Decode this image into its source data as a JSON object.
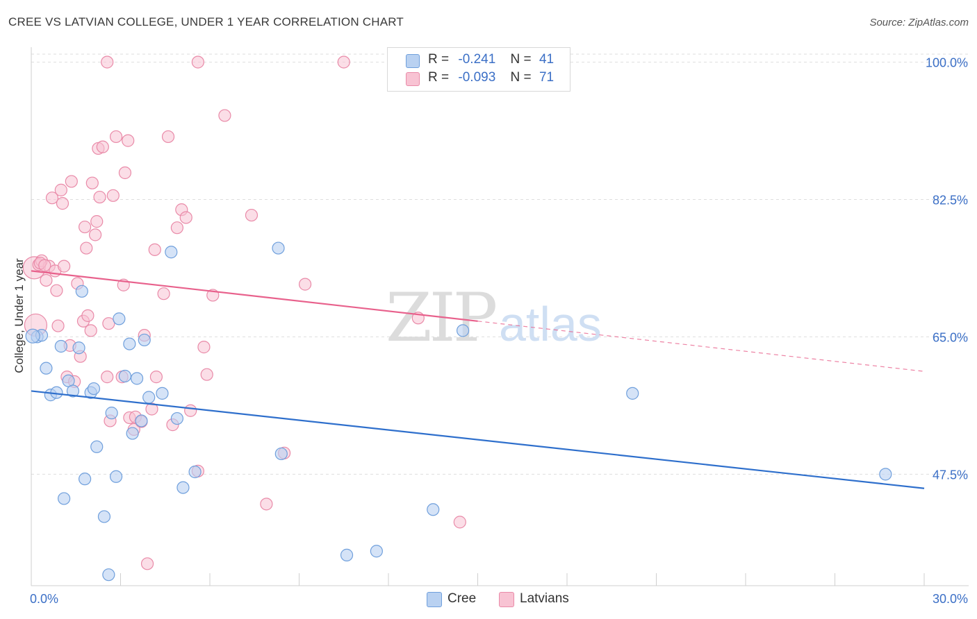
{
  "header": {
    "title": "CREE VS LATVIAN COLLEGE, UNDER 1 YEAR CORRELATION CHART",
    "source": "Source: ZipAtlas.com"
  },
  "legend": {
    "cree": {
      "r_label": "R =",
      "r_value": "-0.241",
      "n_label": "N =",
      "n_value": "41"
    },
    "latvians": {
      "r_label": "R =",
      "r_value": "-0.093",
      "n_label": "N =",
      "n_value": "71"
    }
  },
  "bottom_legend": {
    "cree": "Cree",
    "latvians": "Latvians"
  },
  "watermark": {
    "zip": "ZIP",
    "atlas": "atlas"
  },
  "colors": {
    "cree_fill": "#b9d1f1",
    "cree_stroke": "#6f9fdc",
    "cree_line": "#2e6fcc",
    "latvian_fill": "#f8c3d3",
    "latvian_stroke": "#e98aa8",
    "latvian_line": "#e8618c",
    "tick_label": "#3b6fc6",
    "grid": "#dedede"
  },
  "chart_data": {
    "type": "scatter",
    "title": "CREE VS LATVIAN COLLEGE, UNDER 1 YEAR CORRELATION CHART",
    "xlabel": "",
    "ylabel": "College, Under 1 year",
    "xlim": [
      0,
      30
    ],
    "ylim": [
      33.3,
      101.9
    ],
    "x_tick_labels": [
      "0.0%",
      "30.0%"
    ],
    "y_ticks": [
      47.5,
      65.0,
      82.5,
      100.0
    ],
    "y_tick_labels": [
      "47.5%",
      "65.0%",
      "82.5%",
      "100.0%"
    ],
    "grid": true,
    "series": [
      {
        "name": "Cree",
        "points": [
          [
            0.2,
            65.0
          ],
          [
            0.35,
            65.2
          ],
          [
            0.5,
            61.0
          ],
          [
            0.65,
            57.6
          ],
          [
            0.85,
            57.9
          ],
          [
            1.0,
            63.8
          ],
          [
            1.1,
            44.4
          ],
          [
            1.25,
            59.4
          ],
          [
            1.4,
            58.1
          ],
          [
            1.6,
            63.6
          ],
          [
            1.7,
            70.8
          ],
          [
            1.8,
            46.9
          ],
          [
            2.0,
            57.9
          ],
          [
            2.1,
            58.4
          ],
          [
            2.2,
            51.0
          ],
          [
            2.45,
            42.1
          ],
          [
            2.6,
            34.7
          ],
          [
            2.7,
            55.3
          ],
          [
            2.85,
            47.2
          ],
          [
            2.95,
            67.3
          ],
          [
            3.15,
            60.0
          ],
          [
            3.3,
            64.1
          ],
          [
            3.4,
            52.7
          ],
          [
            3.55,
            59.7
          ],
          [
            3.7,
            54.3
          ],
          [
            3.8,
            64.6
          ],
          [
            3.95,
            57.3
          ],
          [
            4.4,
            57.8
          ],
          [
            4.7,
            75.8
          ],
          [
            4.9,
            54.6
          ],
          [
            5.1,
            45.8
          ],
          [
            5.5,
            47.8
          ],
          [
            8.3,
            76.3
          ],
          [
            8.4,
            50.1
          ],
          [
            10.6,
            37.2
          ],
          [
            11.6,
            37.7
          ],
          [
            13.5,
            43.0
          ],
          [
            14.5,
            65.8
          ],
          [
            20.2,
            57.8
          ],
          [
            28.7,
            47.5
          ],
          [
            0.05,
            65.1
          ]
        ]
      },
      {
        "name": "Latvians",
        "points": [
          [
            0.1,
            73.8
          ],
          [
            0.15,
            66.5
          ],
          [
            0.25,
            74.2
          ],
          [
            0.35,
            74.7
          ],
          [
            0.5,
            72.2
          ],
          [
            0.6,
            74.0
          ],
          [
            0.7,
            82.7
          ],
          [
            0.8,
            73.4
          ],
          [
            0.85,
            70.9
          ],
          [
            0.9,
            66.4
          ],
          [
            1.0,
            83.7
          ],
          [
            1.05,
            82.0
          ],
          [
            1.1,
            74.0
          ],
          [
            1.2,
            59.9
          ],
          [
            1.3,
            63.9
          ],
          [
            1.35,
            84.8
          ],
          [
            1.45,
            59.3
          ],
          [
            1.55,
            71.8
          ],
          [
            1.65,
            62.5
          ],
          [
            1.75,
            67.0
          ],
          [
            1.8,
            79.0
          ],
          [
            1.85,
            76.3
          ],
          [
            1.9,
            67.7
          ],
          [
            2.0,
            65.8
          ],
          [
            2.05,
            84.6
          ],
          [
            2.15,
            78.0
          ],
          [
            2.2,
            79.7
          ],
          [
            2.25,
            89.0
          ],
          [
            2.3,
            82.8
          ],
          [
            2.4,
            89.2
          ],
          [
            2.55,
            59.9
          ],
          [
            2.6,
            66.7
          ],
          [
            2.65,
            54.3
          ],
          [
            2.75,
            83.0
          ],
          [
            2.85,
            90.5
          ],
          [
            3.05,
            59.9
          ],
          [
            3.1,
            71.6
          ],
          [
            3.15,
            85.9
          ],
          [
            3.25,
            90.0
          ],
          [
            3.3,
            54.7
          ],
          [
            3.45,
            53.2
          ],
          [
            3.5,
            54.8
          ],
          [
            3.7,
            54.2
          ],
          [
            3.8,
            65.2
          ],
          [
            3.9,
            36.1
          ],
          [
            4.05,
            55.8
          ],
          [
            4.15,
            76.1
          ],
          [
            4.2,
            59.9
          ],
          [
            4.45,
            70.5
          ],
          [
            4.6,
            90.5
          ],
          [
            4.75,
            53.8
          ],
          [
            4.9,
            78.9
          ],
          [
            5.05,
            81.2
          ],
          [
            5.2,
            80.2
          ],
          [
            5.35,
            55.6
          ],
          [
            5.6,
            47.9
          ],
          [
            5.8,
            63.7
          ],
          [
            5.9,
            60.2
          ],
          [
            6.1,
            70.3
          ],
          [
            6.5,
            93.2
          ],
          [
            7.4,
            80.5
          ],
          [
            7.9,
            43.7
          ],
          [
            8.5,
            50.2
          ],
          [
            9.2,
            71.7
          ],
          [
            13.0,
            67.4
          ],
          [
            14.4,
            41.4
          ],
          [
            2.55,
            100.0
          ],
          [
            5.6,
            100.0
          ],
          [
            10.5,
            100.0
          ],
          [
            0.3,
            74.4
          ],
          [
            0.45,
            74.1
          ]
        ]
      }
    ],
    "trend_lines": [
      {
        "name": "Cree",
        "x": [
          0,
          30
        ],
        "y": [
          58.1,
          45.7
        ]
      },
      {
        "name": "Latvians",
        "x": [
          0,
          15
        ],
        "y": [
          73.4,
          67.0
        ],
        "dashed_extension_to": [
          30,
          60.6
        ]
      }
    ]
  }
}
